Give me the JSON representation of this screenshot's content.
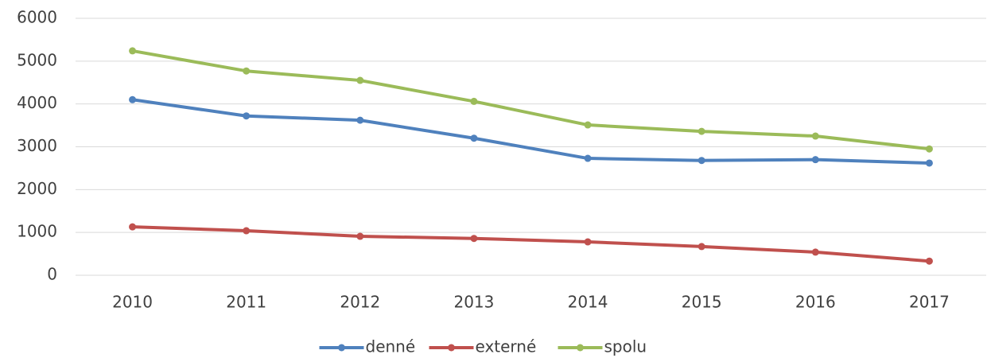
{
  "chart_data": {
    "type": "line",
    "categories": [
      "2010",
      "2011",
      "2012",
      "2013",
      "2014",
      "2015",
      "2016",
      "2017"
    ],
    "series": [
      {
        "name": "denné",
        "color": "#4f81bd",
        "values": [
          4100,
          3720,
          3620,
          3200,
          2730,
          2680,
          2700,
          2620
        ]
      },
      {
        "name": "externé",
        "color": "#c0504d",
        "values": [
          1130,
          1040,
          910,
          860,
          780,
          670,
          540,
          330
        ]
      },
      {
        "name": "spolu",
        "color": "#9bbb59",
        "values": [
          5240,
          4770,
          4550,
          4060,
          3510,
          3360,
          3250,
          2950
        ]
      }
    ],
    "ylim": [
      0,
      6000
    ],
    "yticks": [
      0,
      1000,
      2000,
      3000,
      4000,
      5000,
      6000
    ],
    "grid": true,
    "legend": "bottom"
  }
}
